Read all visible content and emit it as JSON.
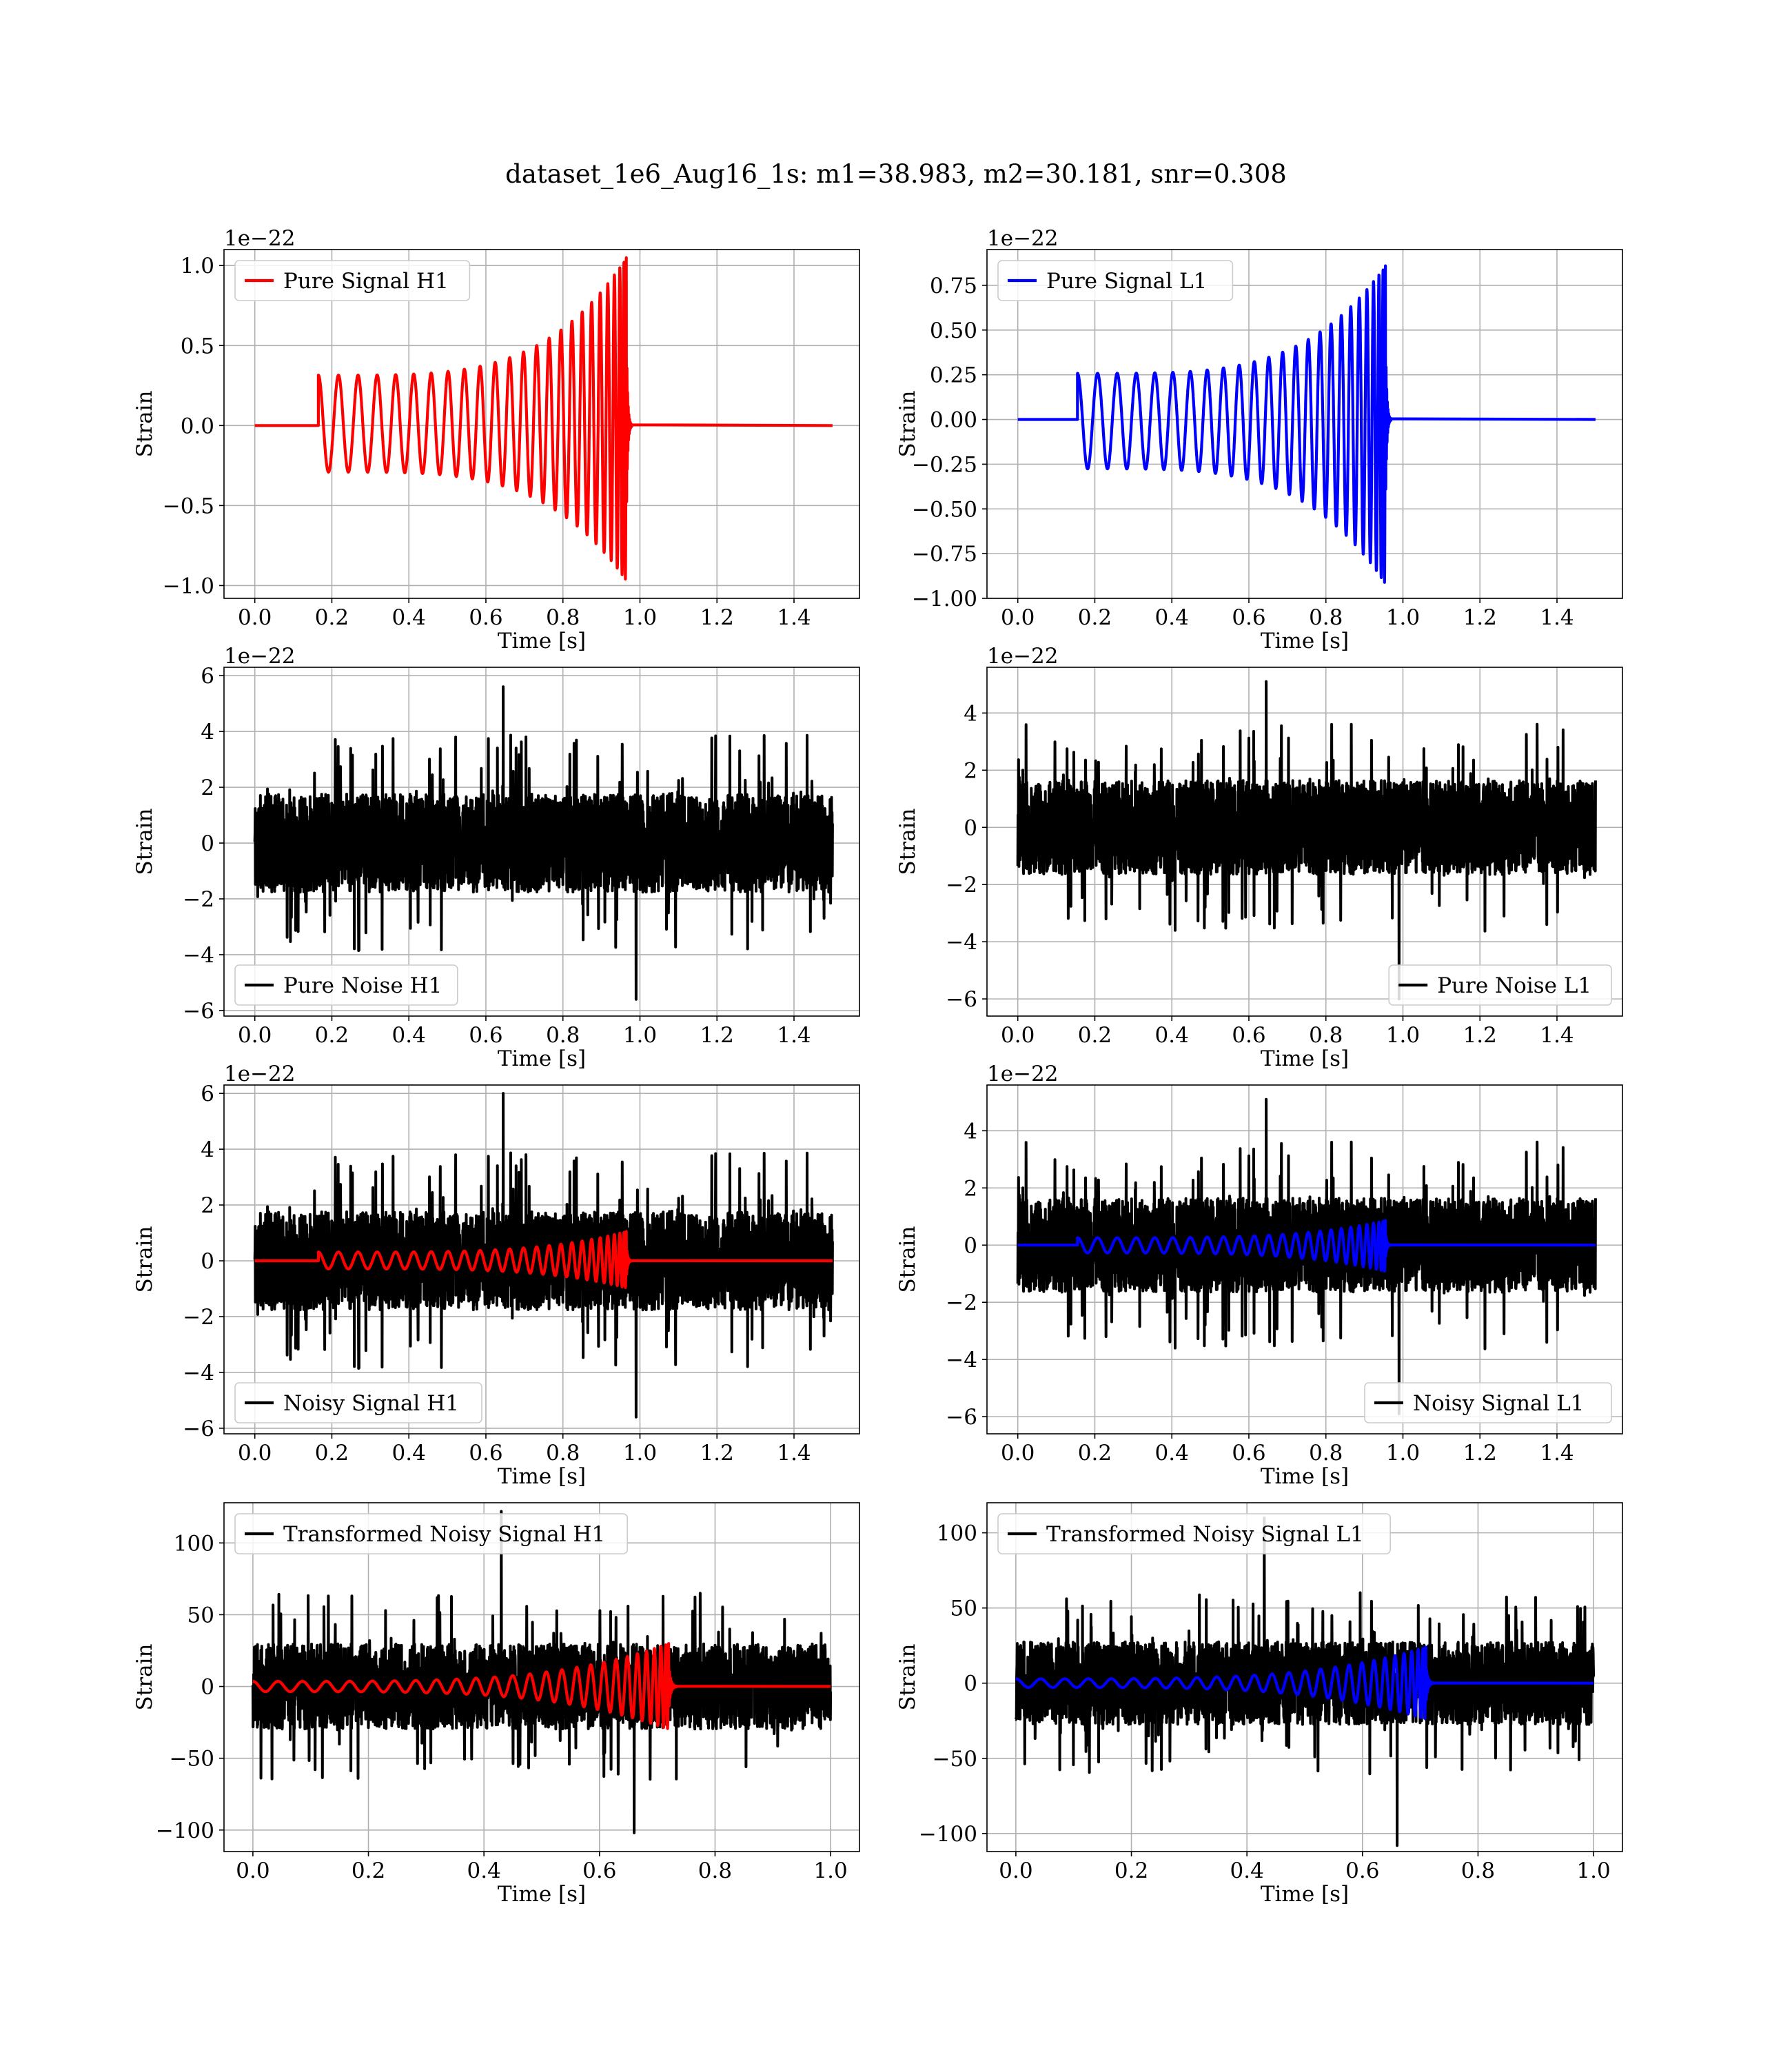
{
  "figure": {
    "title": "dataset_1e6_Aug16_1s: m1=38.983, m2=30.181, snr=0.308",
    "colors": {
      "h1_signal": "#ff0000",
      "l1_signal": "#0000ff",
      "noise": "#000000",
      "grid": "#b0b0b0"
    }
  },
  "chart_data": [
    {
      "id": "pure-signal-h1",
      "type": "line",
      "xlabel": "Time [s]",
      "ylabel": "Strain",
      "offset_text": "1e−22",
      "xlim": [
        -0.08,
        1.57
      ],
      "ylim": [
        -1.08,
        1.1
      ],
      "xticks": [
        0.0,
        0.2,
        0.4,
        0.6,
        0.8,
        1.0,
        1.2,
        1.4
      ],
      "xtick_labels": [
        "0.0",
        "0.2",
        "0.4",
        "0.6",
        "0.8",
        "1.0",
        "1.2",
        "1.4"
      ],
      "yticks": [
        -1.0,
        -0.5,
        0.0,
        0.5,
        1.0
      ],
      "ytick_labels": [
        "−1.0",
        "−0.5",
        "0.0",
        "0.5",
        "1.0"
      ],
      "grid": true,
      "legend_position": "upper left",
      "series": [
        {
          "name": "Pure Signal H1",
          "color": "#ff0000",
          "kind": "chirp",
          "t_start": 0.165,
          "t_merge": 0.965,
          "t_end": 1.5,
          "peak": 1.05,
          "trough": -0.97,
          "cycles": 24
        }
      ]
    },
    {
      "id": "pure-signal-l1",
      "type": "line",
      "xlabel": "Time [s]",
      "ylabel": "Strain",
      "offset_text": "1e−22",
      "xlim": [
        -0.08,
        1.57
      ],
      "ylim": [
        -1.0,
        0.95
      ],
      "xticks": [
        0.0,
        0.2,
        0.4,
        0.6,
        0.8,
        1.0,
        1.2,
        1.4
      ],
      "xtick_labels": [
        "0.0",
        "0.2",
        "0.4",
        "0.6",
        "0.8",
        "1.0",
        "1.2",
        "1.4"
      ],
      "yticks": [
        -1.0,
        -0.75,
        -0.5,
        -0.25,
        0.0,
        0.25,
        0.5,
        0.75
      ],
      "ytick_labels": [
        "−1.00",
        "−0.75",
        "−0.50",
        "−0.25",
        "0.00",
        "0.25",
        "0.50",
        "0.75"
      ],
      "grid": true,
      "legend_position": "upper left",
      "series": [
        {
          "name": "Pure Signal L1",
          "color": "#0000ff",
          "kind": "chirp",
          "t_start": 0.155,
          "t_merge": 0.955,
          "t_end": 1.5,
          "peak": 0.86,
          "trough": -0.92,
          "cycles": 24
        }
      ]
    },
    {
      "id": "pure-noise-h1",
      "type": "line",
      "xlabel": "Time [s]",
      "ylabel": "Strain",
      "offset_text": "1e−22",
      "xlim": [
        -0.08,
        1.57
      ],
      "ylim": [
        -6.2,
        6.3
      ],
      "xticks": [
        0.0,
        0.2,
        0.4,
        0.6,
        0.8,
        1.0,
        1.2,
        1.4
      ],
      "xtick_labels": [
        "0.0",
        "0.2",
        "0.4",
        "0.6",
        "0.8",
        "1.0",
        "1.2",
        "1.4"
      ],
      "yticks": [
        -6,
        -4,
        -2,
        0,
        2,
        4,
        6
      ],
      "ytick_labels": [
        "−6",
        "−4",
        "−2",
        "0",
        "2",
        "4",
        "6"
      ],
      "grid": true,
      "legend_position": "lower left",
      "series": [
        {
          "name": "Pure Noise H1",
          "color": "#000000",
          "kind": "noise",
          "t_start": 0.0,
          "t_end": 1.5,
          "amp": 1.6,
          "max": 5.6,
          "min": -5.6,
          "seed": 11
        }
      ]
    },
    {
      "id": "pure-noise-l1",
      "type": "line",
      "xlabel": "Time [s]",
      "ylabel": "Strain",
      "offset_text": "1e−22",
      "xlim": [
        -0.08,
        1.57
      ],
      "ylim": [
        -6.6,
        5.6
      ],
      "xticks": [
        0.0,
        0.2,
        0.4,
        0.6,
        0.8,
        1.0,
        1.2,
        1.4
      ],
      "xtick_labels": [
        "0.0",
        "0.2",
        "0.4",
        "0.6",
        "0.8",
        "1.0",
        "1.2",
        "1.4"
      ],
      "yticks": [
        -6,
        -4,
        -2,
        0,
        2,
        4
      ],
      "ytick_labels": [
        "−6",
        "−4",
        "−2",
        "0",
        "2",
        "4"
      ],
      "grid": true,
      "legend_position": "lower right",
      "series": [
        {
          "name": "Pure Noise L1",
          "color": "#000000",
          "kind": "noise",
          "t_start": 0.0,
          "t_end": 1.5,
          "amp": 1.5,
          "max": 5.1,
          "min": -6.0,
          "seed": 23
        }
      ]
    },
    {
      "id": "noisy-signal-h1",
      "type": "line",
      "xlabel": "Time [s]",
      "ylabel": "Strain",
      "offset_text": "1e−22",
      "xlim": [
        -0.08,
        1.57
      ],
      "ylim": [
        -6.2,
        6.3
      ],
      "xticks": [
        0.0,
        0.2,
        0.4,
        0.6,
        0.8,
        1.0,
        1.2,
        1.4
      ],
      "xtick_labels": [
        "0.0",
        "0.2",
        "0.4",
        "0.6",
        "0.8",
        "1.0",
        "1.2",
        "1.4"
      ],
      "yticks": [
        -6,
        -4,
        -2,
        0,
        2,
        4,
        6
      ],
      "ytick_labels": [
        "−6",
        "−4",
        "−2",
        "0",
        "2",
        "4",
        "6"
      ],
      "grid": true,
      "legend_position": "lower left",
      "series": [
        {
          "name": "Noisy Signal H1",
          "color": "#000000",
          "kind": "noise",
          "t_start": 0.0,
          "t_end": 1.5,
          "amp": 1.6,
          "max": 6.0,
          "min": -5.6,
          "seed": 11
        },
        {
          "name": "",
          "color": "#ff0000",
          "kind": "chirp",
          "t_start": 0.165,
          "t_merge": 0.965,
          "t_end": 1.5,
          "peak": 1.05,
          "trough": -0.97,
          "cycles": 24
        }
      ]
    },
    {
      "id": "noisy-signal-l1",
      "type": "line",
      "xlabel": "Time [s]",
      "ylabel": "Strain",
      "offset_text": "1e−22",
      "xlim": [
        -0.08,
        1.57
      ],
      "ylim": [
        -6.6,
        5.6
      ],
      "xticks": [
        0.0,
        0.2,
        0.4,
        0.6,
        0.8,
        1.0,
        1.2,
        1.4
      ],
      "xtick_labels": [
        "0.0",
        "0.2",
        "0.4",
        "0.6",
        "0.8",
        "1.0",
        "1.2",
        "1.4"
      ],
      "yticks": [
        -6,
        -4,
        -2,
        0,
        2,
        4
      ],
      "ytick_labels": [
        "−6",
        "−4",
        "−2",
        "0",
        "2",
        "4"
      ],
      "grid": true,
      "legend_position": "lower right",
      "series": [
        {
          "name": "Noisy Signal L1",
          "color": "#000000",
          "kind": "noise",
          "t_start": 0.0,
          "t_end": 1.5,
          "amp": 1.5,
          "max": 5.1,
          "min": -5.9,
          "seed": 23
        },
        {
          "name": "",
          "color": "#0000ff",
          "kind": "chirp",
          "t_start": 0.155,
          "t_merge": 0.955,
          "t_end": 1.5,
          "peak": 0.86,
          "trough": -0.92,
          "cycles": 24
        }
      ]
    },
    {
      "id": "transformed-noisy-signal-h1",
      "type": "line",
      "xlabel": "Time [s]",
      "ylabel": "Strain",
      "offset_text": "",
      "xlim": [
        -0.05,
        1.05
      ],
      "ylim": [
        -115,
        128
      ],
      "xticks": [
        0.0,
        0.2,
        0.4,
        0.6,
        0.8,
        1.0
      ],
      "xtick_labels": [
        "0.0",
        "0.2",
        "0.4",
        "0.6",
        "0.8",
        "1.0"
      ],
      "yticks": [
        -100,
        -50,
        0,
        50,
        100
      ],
      "ytick_labels": [
        "−100",
        "−50",
        "0",
        "50",
        "100"
      ],
      "grid": true,
      "legend_position": "upper left",
      "series": [
        {
          "name": "Transformed Noisy Signal H1",
          "color": "#000000",
          "kind": "noise",
          "t_start": 0.0,
          "t_end": 1.0,
          "amp": 27,
          "max": 122,
          "min": -102,
          "seed": 37
        },
        {
          "name": "",
          "color": "#ff0000",
          "kind": "chirp",
          "t_start": 0.0,
          "t_merge": 0.72,
          "t_end": 1.0,
          "peak": 30,
          "trough": -30,
          "cycles": 26,
          "floor": 0.12
        }
      ]
    },
    {
      "id": "transformed-noisy-signal-l1",
      "type": "line",
      "xlabel": "Time [s]",
      "ylabel": "Strain",
      "offset_text": "",
      "xlim": [
        -0.05,
        1.05
      ],
      "ylim": [
        -112,
        120
      ],
      "xticks": [
        0.0,
        0.2,
        0.4,
        0.6,
        0.8,
        1.0
      ],
      "xtick_labels": [
        "0.0",
        "0.2",
        "0.4",
        "0.6",
        "0.8",
        "1.0"
      ],
      "yticks": [
        -100,
        -50,
        0,
        50,
        100
      ],
      "ytick_labels": [
        "−100",
        "−50",
        "0",
        "50",
        "100"
      ],
      "grid": true,
      "legend_position": "upper left",
      "series": [
        {
          "name": "Transformed Noisy Signal L1",
          "color": "#000000",
          "kind": "noise",
          "t_start": 0.0,
          "t_end": 1.0,
          "amp": 25,
          "max": 110,
          "min": -108,
          "seed": 53
        },
        {
          "name": "",
          "color": "#0000ff",
          "kind": "chirp",
          "t_start": 0.0,
          "t_merge": 0.71,
          "t_end": 1.0,
          "peak": 24,
          "trough": -24,
          "cycles": 26,
          "floor": 0.12
        }
      ]
    }
  ]
}
